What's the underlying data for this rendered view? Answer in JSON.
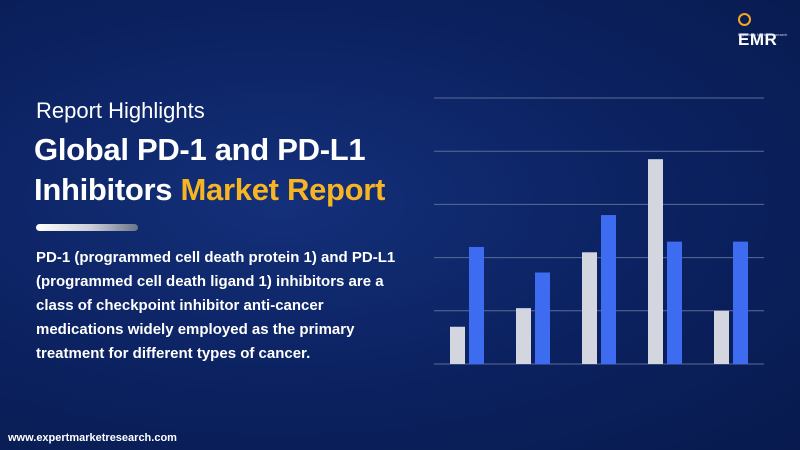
{
  "brand": {
    "logo_text": "EMR",
    "logo_tagline": "Experts in Market Research",
    "website": "www.expertmarketresearch.com"
  },
  "report": {
    "subtitle": "Report Highlights",
    "title_line1": "Global PD-1 and PD-L1",
    "title_line2_plain": "Inhibitors ",
    "title_line2_accent": "Market Report",
    "description": "PD-1 (programmed cell death protein 1) and PD-L1 (programmed cell death ligand 1) inhibitors are a class of checkpoint inhibitor anti-cancer medications widely employed as the primary treatment for different types of cancer."
  },
  "colors": {
    "background": "#0a1f5c",
    "accent": "#f7b524",
    "bar_grey": "#d3d6de",
    "bar_blue": "#3d6cf0",
    "gridline": "#5a6b99"
  },
  "chart_data": {
    "type": "bar",
    "decorative": true,
    "categories": [
      "",
      "",
      "",
      "",
      ""
    ],
    "series": [
      {
        "values": [
          0.7,
          1.05,
          2.1,
          3.85,
          1.0
        ]
      },
      {
        "values": [
          2.2,
          1.72,
          2.8,
          2.3,
          2.3
        ]
      }
    ],
    "ylim": [
      0,
      5
    ],
    "grid": true,
    "gridlines": [
      0,
      1,
      2,
      3,
      4,
      5
    ]
  }
}
